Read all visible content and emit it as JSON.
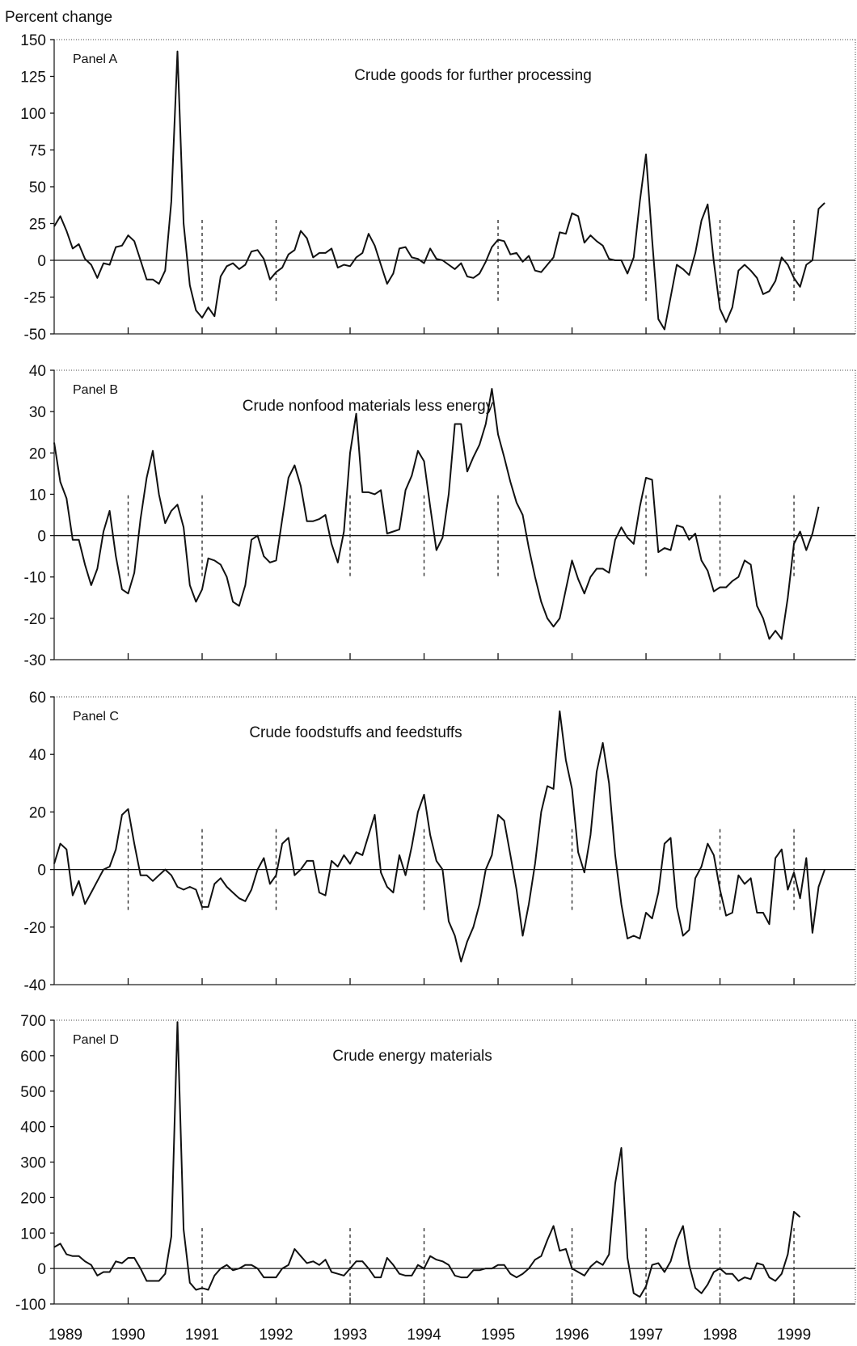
{
  "figure": {
    "ylabel": "Percent change",
    "x_tick_labels": [
      "1989",
      "1990",
      "1991",
      "1992",
      "1993",
      "1994",
      "1995",
      "1996",
      "1997",
      "1998",
      "1999"
    ]
  },
  "chart_data": [
    {
      "type": "line",
      "panel": "Panel A",
      "title": "Crude goods for further processing",
      "ylabel": "Percent change",
      "xlabel": "",
      "ylim": [
        -50,
        150
      ],
      "yticks": [
        150,
        125,
        100,
        75,
        50,
        25,
        0,
        -25,
        -50
      ],
      "x_start": 1989.0,
      "x_step": 0.08333,
      "annotation_years": [
        1991,
        1992,
        1995,
        1997,
        1998,
        1999
      ],
      "values": [
        23,
        30,
        20,
        8,
        11,
        1,
        -3,
        -12,
        -2,
        -3,
        9,
        10,
        17,
        13,
        0,
        -13,
        -13,
        -16,
        -7,
        40,
        142,
        25,
        -17,
        -34,
        -39,
        -32,
        -38,
        -11,
        -4,
        -2,
        -6,
        -3,
        6,
        7,
        1,
        -13,
        -8,
        -5,
        4,
        7,
        20,
        15,
        2,
        5,
        5,
        8,
        -5,
        -3,
        -4,
        2,
        5,
        18,
        10,
        -3,
        -16,
        -9,
        8,
        9,
        2,
        1,
        -2,
        8,
        1,
        0,
        -3,
        -6,
        -2,
        -11,
        -12,
        -9,
        -1,
        9,
        14,
        13,
        4,
        5,
        -1,
        3,
        -7,
        -8,
        -3,
        2,
        19,
        18,
        32,
        30,
        12,
        17,
        13,
        10,
        1,
        0,
        0,
        -9,
        2,
        40,
        72,
        14,
        -40,
        -47,
        -25,
        -3,
        -6,
        -10,
        5,
        27,
        38,
        -1,
        -33,
        -42,
        -32,
        -7,
        -3,
        -7,
        -12,
        -23,
        -21,
        -14,
        2,
        -3,
        -12,
        -18,
        -3,
        0,
        35,
        39
      ]
    },
    {
      "type": "line",
      "panel": "Panel B",
      "title": "Crude nonfood materials less energy",
      "ylabel": "",
      "xlabel": "",
      "ylim": [
        -30,
        40
      ],
      "yticks": [
        40,
        30,
        20,
        10,
        0,
        -10,
        -20,
        -30
      ],
      "x_start": 1989.0,
      "x_step": 0.08333,
      "annotation_years": [
        1990,
        1991,
        1993,
        1994,
        1995,
        1997,
        1998,
        1999
      ],
      "values": [
        22.5,
        13,
        9,
        -1,
        -1,
        -7,
        -12,
        -8,
        1,
        6,
        -5,
        -13,
        -14,
        -9,
        4,
        14,
        20.5,
        10,
        3,
        6,
        7.5,
        2,
        -12,
        -16,
        -13,
        -5.5,
        -6,
        -7,
        -10,
        -16,
        -17,
        -12,
        -1,
        0,
        -5,
        -6.5,
        -6,
        4,
        14,
        17,
        12,
        3.5,
        3.5,
        4,
        5,
        -2,
        -6.5,
        1,
        20,
        29.5,
        10.5,
        10.5,
        10,
        11,
        0.5,
        1,
        1.5,
        11,
        14.5,
        20.5,
        18,
        7,
        -3.5,
        -0.5,
        10,
        27,
        27,
        15.5,
        19,
        22,
        27,
        35.5,
        24.5,
        19,
        13,
        8,
        5,
        -3,
        -10,
        -16,
        -20,
        -22,
        -20,
        -13,
        -6,
        -10.5,
        -14,
        -10,
        -8,
        -8,
        -9,
        -1,
        2,
        -0.5,
        -2,
        7,
        14,
        13.5,
        -4,
        -3,
        -3.5,
        2.5,
        2,
        -1,
        0.5,
        -6,
        -8.5,
        -13.5,
        -12.5,
        -12.5,
        -11,
        -10,
        -6,
        -7,
        -17,
        -20,
        -25,
        -23,
        -25,
        -15,
        -2,
        1,
        -3.5,
        0.5,
        7
      ]
    },
    {
      "type": "line",
      "panel": "Panel C",
      "title": "Crude foodstuffs and feedstuffs",
      "ylabel": "",
      "xlabel": "",
      "ylim": [
        -40,
        60
      ],
      "yticks": [
        60,
        40,
        20,
        0,
        -20,
        -40
      ],
      "x_start": 1989.0,
      "x_step": 0.08333,
      "annotation_years": [
        1990,
        1991,
        1992,
        1994,
        1996,
        1998,
        1999
      ],
      "values": [
        2,
        9,
        7,
        -9,
        -4,
        -12,
        -8,
        -4,
        0,
        1,
        7,
        19,
        21,
        9,
        -2,
        -2,
        -4,
        -2,
        0,
        -2,
        -6,
        -7,
        -6,
        -7,
        -13,
        -13,
        -5,
        -3,
        -6,
        -8,
        -10,
        -11,
        -7,
        0,
        4,
        -5,
        -2,
        9,
        11,
        -2,
        0,
        3,
        3,
        -8,
        -9,
        3,
        1,
        5,
        2,
        6,
        5,
        12,
        19,
        -1,
        -6,
        -8,
        5,
        -2,
        8,
        20,
        26,
        12,
        3,
        0,
        -18,
        -23,
        -32,
        -25,
        -20,
        -12,
        0,
        5,
        19,
        17,
        5,
        -7,
        -23,
        -12,
        2,
        20,
        29,
        28,
        55,
        38,
        28,
        6,
        -1,
        12,
        34,
        44,
        30,
        5,
        -12,
        -24,
        -23,
        -24,
        -15,
        -17,
        -8,
        9,
        11,
        -13,
        -23,
        -21,
        -3,
        1,
        9,
        5,
        -7,
        -16,
        -15,
        -2,
        -5,
        -3,
        -15,
        -15,
        -19,
        4,
        7,
        -7,
        -1,
        -10,
        4,
        -22,
        -6,
        0
      ]
    },
    {
      "type": "line",
      "panel": "Panel D",
      "title": "Crude energy materials",
      "ylabel": "",
      "xlabel": "",
      "ylim": [
        -100,
        700
      ],
      "yticks": [
        700,
        600,
        500,
        400,
        300,
        200,
        100,
        0,
        -100
      ],
      "x_start": 1989.0,
      "x_step": 0.08333,
      "annotation_years": [
        1991,
        1993,
        1994,
        1996,
        1997,
        1998,
        1999
      ],
      "values": [
        60,
        70,
        40,
        35,
        35,
        20,
        10,
        -20,
        -10,
        -10,
        20,
        15,
        30,
        30,
        0,
        -35,
        -35,
        -35,
        -15,
        90,
        695,
        110,
        -40,
        -60,
        -55,
        -60,
        -20,
        0,
        10,
        -5,
        0,
        10,
        10,
        0,
        -25,
        -25,
        -25,
        0,
        10,
        55,
        35,
        15,
        20,
        10,
        25,
        -10,
        -15,
        -20,
        0,
        20,
        20,
        0,
        -25,
        -25,
        30,
        10,
        -15,
        -20,
        -20,
        10,
        0,
        35,
        25,
        20,
        10,
        -20,
        -25,
        -25,
        -5,
        -5,
        0,
        0,
        10,
        10,
        -15,
        -25,
        -15,
        0,
        25,
        35,
        80,
        120,
        50,
        55,
        0,
        -10,
        -20,
        5,
        20,
        10,
        40,
        240,
        340,
        30,
        -70,
        -80,
        -50,
        10,
        15,
        -10,
        20,
        80,
        120,
        10,
        -55,
        -70,
        -45,
        -10,
        0,
        -15,
        -15,
        -35,
        -25,
        -30,
        15,
        10,
        -25,
        -35,
        -15,
        40,
        160,
        145
      ]
    }
  ]
}
